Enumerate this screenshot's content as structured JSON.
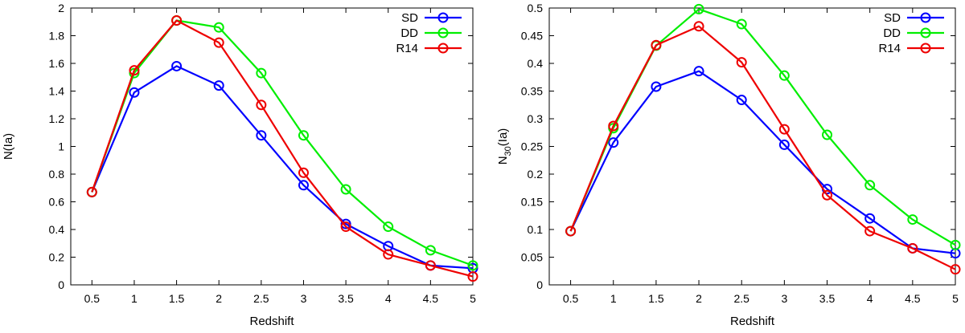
{
  "chart_data": [
    {
      "type": "line",
      "title": "",
      "xlabel": "Redshift",
      "ylabel": "N(Ia)",
      "xlim": [
        0.25,
        5.0
      ],
      "ylim": [
        0,
        2.0
      ],
      "x": [
        0.5,
        1,
        1.5,
        2,
        2.5,
        3,
        3.5,
        4,
        4.5,
        5
      ],
      "xticks": [
        "0.5",
        "1",
        "1.5",
        "2",
        "2.5",
        "3",
        "3.5",
        "4",
        "4.5",
        "5"
      ],
      "yticks": [
        "0",
        "0.2",
        "0.4",
        "0.6",
        "0.8",
        "1",
        "1.2",
        "1.4",
        "1.6",
        "1.8",
        "2"
      ],
      "ytick_values": [
        0,
        0.2,
        0.4,
        0.6,
        0.8,
        1.0,
        1.2,
        1.4,
        1.6,
        1.8,
        2.0
      ],
      "legend_position": "top-right",
      "series": [
        {
          "name": "SD",
          "color": "#0000ff",
          "values": [
            0.67,
            1.39,
            1.58,
            1.44,
            1.08,
            0.72,
            0.44,
            0.28,
            0.14,
            0.12
          ]
        },
        {
          "name": "DD",
          "color": "#00ee00",
          "values": [
            0.67,
            1.53,
            1.91,
            1.86,
            1.53,
            1.08,
            0.69,
            0.42,
            0.25,
            0.14
          ]
        },
        {
          "name": "R14",
          "color": "#ee0000",
          "values": [
            0.67,
            1.55,
            1.91,
            1.75,
            1.3,
            0.81,
            0.42,
            0.22,
            0.14,
            0.06
          ]
        }
      ]
    },
    {
      "type": "line",
      "title": "",
      "xlabel": "Redshift",
      "ylabel": "N",
      "ylabel_sub": "30",
      "ylabel_suffix": "(Ia)",
      "xlim": [
        0.25,
        5.0
      ],
      "ylim": [
        0,
        0.5
      ],
      "x": [
        0.5,
        1,
        1.5,
        2,
        2.5,
        3,
        3.5,
        4,
        4.5,
        5
      ],
      "xticks": [
        "0.5",
        "1",
        "1.5",
        "2",
        "2.5",
        "3",
        "3.5",
        "4",
        "4.5",
        "5"
      ],
      "yticks": [
        "0",
        "0.05",
        "0.1",
        "0.15",
        "0.2",
        "0.25",
        "0.3",
        "0.35",
        "0.4",
        "0.45",
        "0.5"
      ],
      "ytick_values": [
        0,
        0.05,
        0.1,
        0.15,
        0.2,
        0.25,
        0.3,
        0.35,
        0.4,
        0.45,
        0.5
      ],
      "legend_position": "top-right",
      "series": [
        {
          "name": "SD",
          "color": "#0000ff",
          "values": [
            0.097,
            0.257,
            0.358,
            0.386,
            0.334,
            0.253,
            0.173,
            0.12,
            0.066,
            0.057
          ]
        },
        {
          "name": "DD",
          "color": "#00ee00",
          "values": [
            0.097,
            0.283,
            0.432,
            0.498,
            0.471,
            0.378,
            0.271,
            0.18,
            0.118,
            0.072
          ]
        },
        {
          "name": "R14",
          "color": "#ee0000",
          "values": [
            0.097,
            0.287,
            0.433,
            0.467,
            0.402,
            0.281,
            0.162,
            0.097,
            0.066,
            0.028
          ]
        }
      ]
    }
  ]
}
